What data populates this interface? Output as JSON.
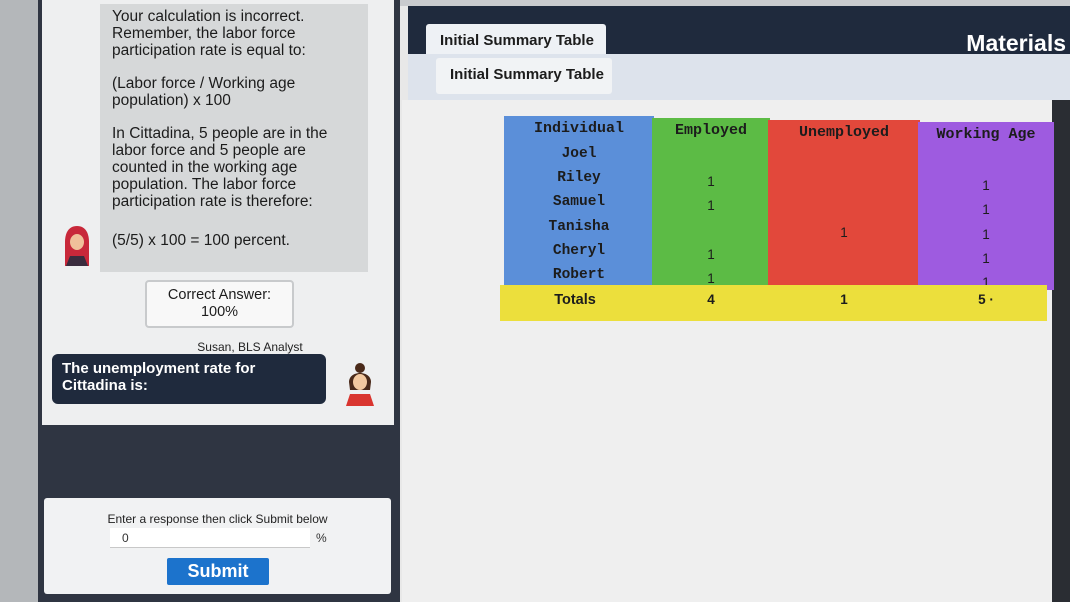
{
  "feedback": {
    "line1": "Your calculation is incorrect. Remember, the labor force participation rate is equal to:",
    "line2": "(Labor force / Working age population) x 100",
    "line3": "In Cittadina, 5 people are in the labor force and 5 people are counted in the working age population. The labor force participation rate is therefore:",
    "line4": "(5/5) x 100 = 100 percent."
  },
  "correct_answer": {
    "label": "Correct Answer:",
    "value": "100%"
  },
  "analyst": "Susan, BLS Analyst",
  "question": "The unemployment rate for Cittadina is:",
  "response": {
    "label": "Enter a response then click Submit below",
    "value": "0",
    "unit": "%",
    "submit_label": "Submit"
  },
  "materials_title": "Materials",
  "tabs": {
    "outer": "Initial Summary Table",
    "inner": "Initial Summary Table"
  },
  "table": {
    "headers": [
      "Individual",
      "Employed",
      "Unemployed",
      "Working Age"
    ],
    "rows": [
      [
        "Joel",
        "",
        "",
        ""
      ],
      [
        "Riley",
        "1",
        "",
        "1"
      ],
      [
        "Samuel",
        "1",
        "",
        "1"
      ],
      [
        "Tanisha",
        "",
        "1",
        "1"
      ],
      [
        "Cheryl",
        "1",
        "",
        "1"
      ],
      [
        "Robert",
        "1",
        "",
        "1"
      ]
    ],
    "totals": [
      "Totals",
      "4",
      "1",
      "5 ·"
    ]
  },
  "colors": {
    "individual": "#5b8fd9",
    "employed": "#5cbb45",
    "unemployed": "#e2483b",
    "working_age": "#9e5be0",
    "totals": "#ecdf3c",
    "navy": "#1f2a3d",
    "submit": "#1c73cc"
  }
}
